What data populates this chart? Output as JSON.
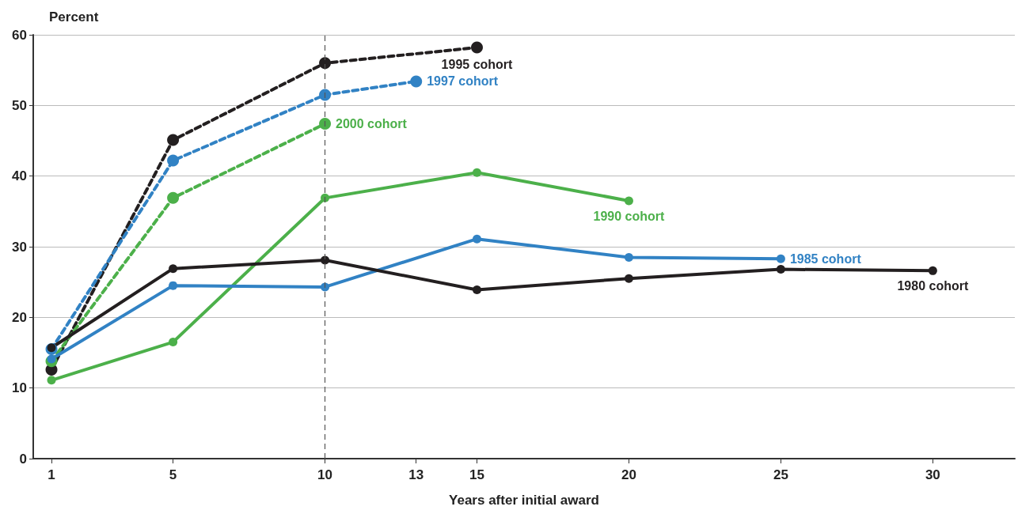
{
  "chart_data": {
    "type": "line",
    "ylabel": "Percent",
    "xlabel": "Years after initial award",
    "xlim": [
      0.4,
      32.7
    ],
    "xticks": [
      1,
      5,
      10,
      13,
      15,
      20,
      25,
      30
    ],
    "ylim": [
      0,
      60
    ],
    "yticks": [
      0,
      10,
      20,
      30,
      40,
      50,
      60
    ],
    "grid": "y",
    "legend": false,
    "marker": "circle",
    "ref_lines": [
      {
        "axis": "x",
        "value": 10,
        "color": "#555555",
        "line_style": "dashed"
      }
    ],
    "series": [
      {
        "name": "1995 cohort",
        "color": "#231f20",
        "line_style": "dashed",
        "x": [
          1,
          5,
          10,
          15
        ],
        "values": [
          12.6,
          45.1,
          56.0,
          58.2
        ]
      },
      {
        "name": "1997 cohort",
        "color": "#3182c4",
        "line_style": "dashed",
        "x": [
          1,
          5,
          10,
          13
        ],
        "values": [
          15.5,
          42.2,
          51.5,
          53.4
        ]
      },
      {
        "name": "2000 cohort",
        "color": "#4cb04a",
        "line_style": "dashed",
        "x": [
          1,
          5,
          10
        ],
        "values": [
          13.8,
          36.9,
          47.4
        ]
      },
      {
        "name": "1990 cohort",
        "color": "#4cb04a",
        "line_style": "solid",
        "x": [
          1,
          5,
          10,
          15,
          20
        ],
        "values": [
          11.1,
          16.5,
          36.9,
          40.5,
          36.5
        ]
      },
      {
        "name": "1985 cohort",
        "color": "#3182c4",
        "line_style": "solid",
        "x": [
          1,
          5,
          10,
          15,
          20,
          25
        ],
        "values": [
          14.1,
          24.5,
          24.3,
          31.1,
          28.5,
          28.3
        ]
      },
      {
        "name": "1980 cohort",
        "color": "#231f20",
        "line_style": "solid",
        "x": [
          1,
          5,
          10,
          15,
          20,
          25,
          30
        ],
        "values": [
          15.7,
          26.9,
          28.1,
          23.9,
          25.5,
          26.8,
          26.6
        ]
      }
    ]
  }
}
